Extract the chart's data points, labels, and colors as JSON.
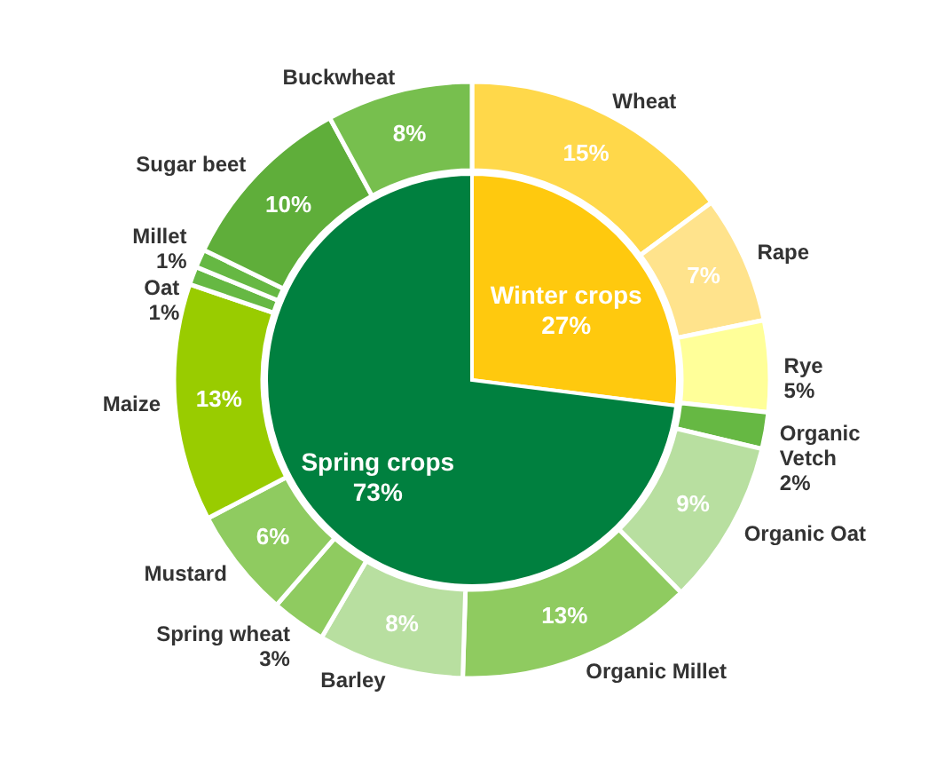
{
  "chart_data": [
    {
      "type": "pie",
      "categories": [
        "Winter crops",
        "Spring crops"
      ],
      "values": [
        27,
        73
      ],
      "colors": [
        "#ffc90e",
        "#00803f"
      ],
      "value_labels": [
        "27%",
        "73%"
      ]
    },
    {
      "type": "donut",
      "categories": [
        "Wheat",
        "Rape",
        "Rye",
        "Organic Vetch",
        "Organic Oat",
        "Organic Millet",
        "Barley",
        "Spring wheat",
        "Mustard",
        "Maize",
        "Oat",
        "Millet",
        "Sugar beet",
        "Buckwheat"
      ],
      "values": [
        15,
        7,
        5,
        2,
        9,
        13,
        8,
        3,
        6,
        13,
        1,
        1,
        10,
        8
      ],
      "colors": [
        "#ffd84a",
        "#ffe38c",
        "#ffff99",
        "#66b843",
        "#b8dfa0",
        "#8fcb60",
        "#b8dfa0",
        "#8fcb60",
        "#8fcb60",
        "#99cc00",
        "#66b843",
        "#66b843",
        "#5fae3a",
        "#77bf4e"
      ],
      "value_labels": [
        "15%",
        "7%",
        "5%",
        "2%",
        "9%",
        "13%",
        "8%",
        "3%",
        "6%",
        "13%",
        "1%",
        "1%",
        "10%",
        "8%"
      ]
    }
  ]
}
